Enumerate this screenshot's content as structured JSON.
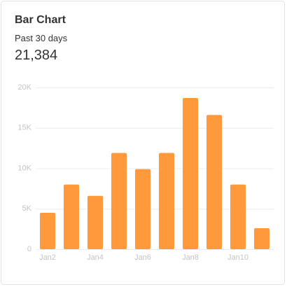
{
  "header": {
    "title": "Bar Chart",
    "subtitle": "Past 30 days",
    "total": "21,384"
  },
  "chart_data": {
    "type": "bar",
    "categories": [
      "Jan2",
      null,
      "Jan4",
      null,
      "Jan6",
      null,
      "Jan8",
      null,
      "Jan10",
      null
    ],
    "values": [
      4500,
      8000,
      6600,
      11900,
      9900,
      11900,
      18700,
      16600,
      8000,
      2600
    ],
    "color": "#ff9a3c",
    "ylim": [
      0,
      20000
    ],
    "yticks": [
      0,
      {
        "value": 5000,
        "label": "5K"
      },
      {
        "value": 10000,
        "label": "10K"
      },
      {
        "value": 15000,
        "label": "15K"
      },
      {
        "value": 20000,
        "label": "20K"
      }
    ],
    "grid": true
  }
}
